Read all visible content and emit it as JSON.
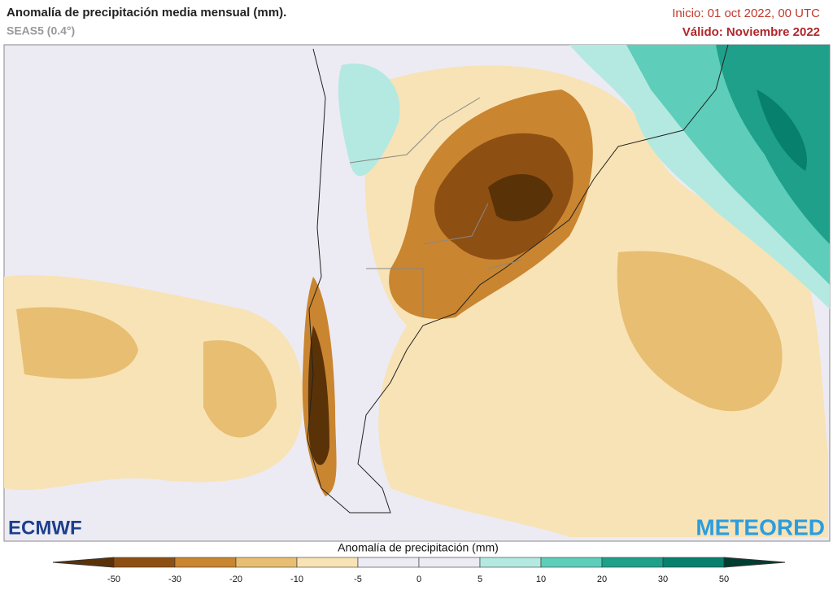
{
  "header": {
    "title": "Anomalía de precipitación media mensual (mm).",
    "subtitle": "SEAS5 (0.4°)",
    "init": "Inicio: 01 oct 2022, 00 UTC",
    "valid": "Válido: Noviembre 2022"
  },
  "legend": {
    "title": "Anomalía de precipitación (mm)",
    "ticks": [
      -50,
      -30,
      -20,
      -10,
      -5,
      0,
      5,
      10,
      20,
      30,
      50
    ],
    "colors": [
      "#5a3208",
      "#8e4f12",
      "#c98530",
      "#e7be72",
      "#f8e3b6",
      "#ecebf4",
      "#ecebf4",
      "#b4e9e1",
      "#5ecdb9",
      "#1fa08b",
      "#07806e",
      "#013d31"
    ]
  },
  "logos": {
    "left": "ECMWF",
    "right": "METEORED"
  }
}
